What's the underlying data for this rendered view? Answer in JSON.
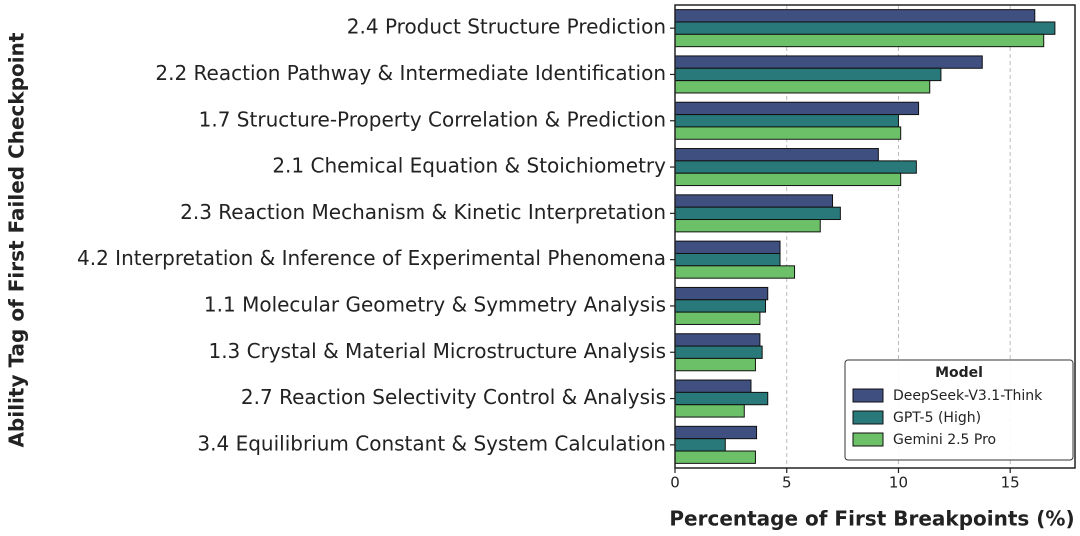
{
  "chart_data": {
    "type": "hbar",
    "xlabel": "Percentage of First Breakpoints (%)",
    "ylabel": "Ability Tag of First Failed Checkpoint",
    "categories": [
      "2.4 Product Structure Prediction",
      "2.2 Reaction Pathway & Intermediate Identification",
      "1.7 Structure-Property Correlation & Prediction",
      "2.1 Chemical Equation & Stoichiometry",
      "2.3 Reaction Mechanism & Kinetic Interpretation",
      "4.2 Interpretation & Inference of Experimental Phenomena",
      "1.1 Molecular Geometry & Symmetry Analysis",
      "1.3 Crystal & Material Microstructure Analysis",
      "2.7 Reaction Selectivity Control & Analysis",
      "3.4 Equilibrium Constant & System Calculation"
    ],
    "series": [
      {
        "name": "DeepSeek-V3.1-Think",
        "color": "#3e4f80",
        "values": [
          16.1,
          13.75,
          10.9,
          9.1,
          7.05,
          4.7,
          4.15,
          3.8,
          3.4,
          3.65
        ]
      },
      {
        "name": "GPT-5 (High)",
        "color": "#29797a",
        "values": [
          17.0,
          11.9,
          10.0,
          10.8,
          7.4,
          4.7,
          4.05,
          3.9,
          4.15,
          2.25
        ]
      },
      {
        "name": "Gemini 2.5 Pro",
        "color": "#6cc068",
        "values": [
          16.5,
          11.4,
          10.1,
          10.1,
          6.5,
          5.35,
          3.8,
          3.6,
          3.1,
          3.6
        ]
      }
    ],
    "legend_title": "Model",
    "legend_position": "lower right",
    "xlim": [
      0,
      17.9
    ],
    "xticks": [
      0,
      5,
      10,
      15
    ],
    "grid": true
  }
}
